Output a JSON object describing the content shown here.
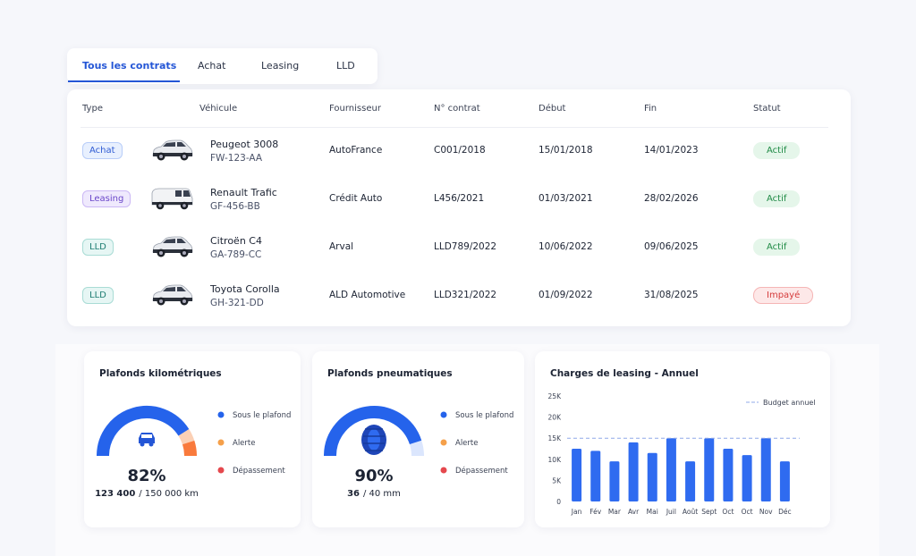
{
  "tabs": [
    "Tous les contrats",
    "Achat",
    "Leasing",
    "LLD"
  ],
  "table": {
    "headers": [
      "Type",
      "Véhicule",
      "Fournisseur",
      "N° contrat",
      "Début",
      "Fin",
      "Statut"
    ],
    "rows": [
      {
        "type": "Achat",
        "vehicle": "Peugeot 3008",
        "plate": "FW-123-AA",
        "supplier": "AutoFrance",
        "contract": "C001/2018",
        "start": "15/01/2018",
        "end": "14/01/2023",
        "status": "Actif"
      },
      {
        "type": "Leasing",
        "vehicle": "Renault Trafic",
        "plate": "GF-456-BB",
        "supplier": "Crédit Auto",
        "contract": "L456/2021",
        "start": "01/03/2021",
        "end": "28/02/2026",
        "status": "Actif"
      },
      {
        "type": "LLD",
        "vehicle": "Citroën C4",
        "plate": "GA-789-CC",
        "supplier": "Arval",
        "contract": "LLD789/2022",
        "start": "10/06/2022",
        "end": "09/06/2025",
        "status": "Actif"
      },
      {
        "type": "LLD",
        "vehicle": "Toyota Corolla",
        "plate": "GH-321-DD",
        "supplier": "ALD Automotive",
        "contract": "LLD321/2022",
        "start": "01/09/2022",
        "end": "31/08/2025",
        "status": "Impayé"
      }
    ]
  },
  "gauges": [
    {
      "title": "Plafonds kilométriques",
      "value": 82,
      "value_label": "82%",
      "used": "123 400",
      "limit": "/ 150 000 km",
      "legend": [
        {
          "name": "Sous le plafond",
          "color": "#2563eb"
        },
        {
          "name": "Alerte",
          "color": "#f5a04a"
        },
        {
          "name": "Dépassement",
          "color": "#e5484d"
        }
      ]
    },
    {
      "title": "Plafonds pneumatiques",
      "value": 90,
      "value_label": "90%",
      "used": "36",
      "limit": "/ 40 mm",
      "legend": [
        {
          "name": "Sous le plafond",
          "color": "#2563eb"
        },
        {
          "name": "Alerte",
          "color": "#f5a04a"
        },
        {
          "name": "Dépassement",
          "color": "#e5484d"
        }
      ]
    }
  ],
  "chart_data": {
    "type": "bar",
    "title": "Charges de leasing - Annuel",
    "categories": [
      "Jan",
      "Fév",
      "Mar",
      "Avr",
      "Mai",
      "Juil",
      "Août",
      "Sept",
      "Oct",
      "Oct",
      "Nov",
      "Déc"
    ],
    "values": [
      12500,
      12000,
      9500,
      14000,
      11500,
      15000,
      9500,
      15000,
      12500,
      11000,
      15000,
      9500
    ],
    "color": "#2f6bf0",
    "ylim": [
      0,
      25000
    ],
    "yticks": [
      0,
      {
        "value": 5000,
        "label": "5K"
      },
      {
        "value": 10000,
        "label": "10K"
      },
      {
        "value": 15000,
        "label": "15K"
      },
      {
        "value": 20000,
        "label": "20K"
      },
      {
        "value": 25000,
        "label": "25K"
      }
    ],
    "reference_line": {
      "name": "Budget annuel",
      "value": 15000,
      "color": "#8fa8e8"
    }
  }
}
